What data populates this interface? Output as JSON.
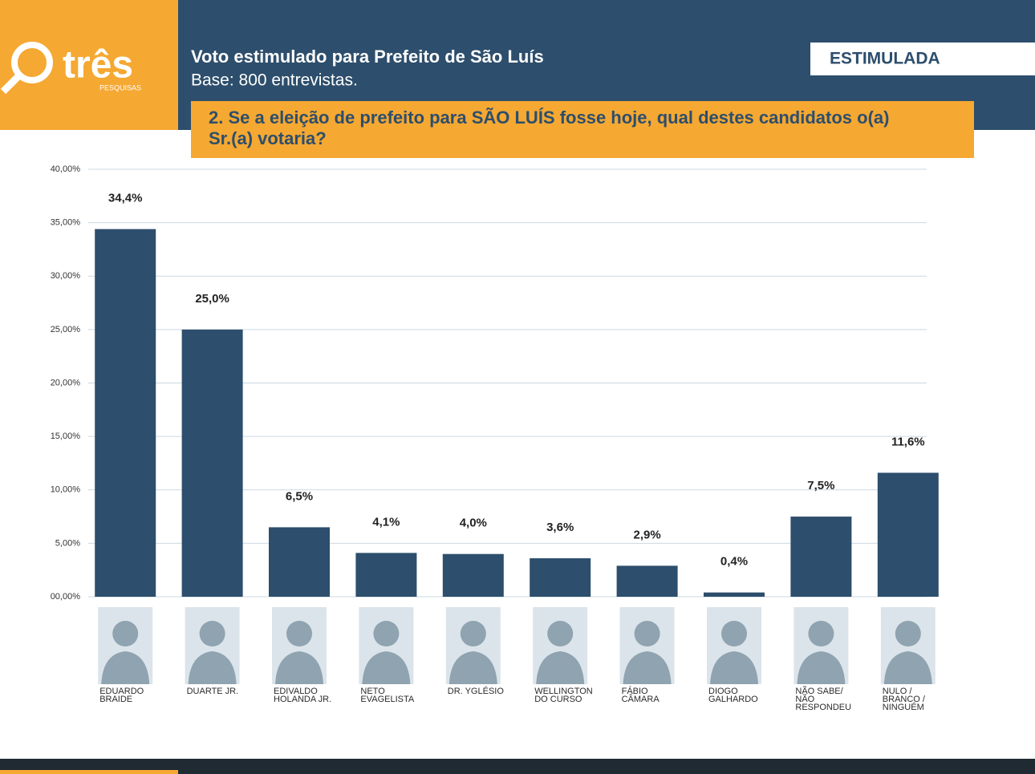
{
  "brand": {
    "name": "três",
    "tagline": "PESQUISAS"
  },
  "header": {
    "title": "Voto estimulado para Prefeito de São Luís",
    "subtitle": "Base: 800 entrevistas.",
    "badge": "ESTIMULADA",
    "question": "2. Se a eleição de prefeito para SÃO LUÍS fosse hoje, qual destes candidatos o(a) Sr.(a) votaria?"
  },
  "chart_data": {
    "type": "bar",
    "categories": [
      "EDUARDO BRAIDE",
      "DUARTE JR.",
      "EDIVALDO HOLANDA JR.",
      "NETO EVAGELISTA",
      "DR. YGLÉSIO",
      "WELLINGTON DO CURSO",
      "FÁBIO CÂMARA",
      "DIOGO GALHARDO",
      "NÃO SABE/ NÃO RESPONDEU",
      "NULO / BRANCO / NINGUÉM"
    ],
    "values": [
      34.4,
      25.0,
      6.5,
      4.1,
      4.0,
      3.6,
      2.9,
      0.4,
      7.5,
      11.6
    ],
    "value_labels": [
      "34,4%",
      "25,0%",
      "6,5%",
      "4,1%",
      "4,0%",
      "3,6%",
      "2,9%",
      "0,4%",
      "7,5%",
      "11,6%"
    ],
    "color": "#2d4e6c",
    "ylim": [
      0,
      40
    ],
    "yticks": [
      {
        "value": 0,
        "label": "00,00%"
      },
      {
        "value": 5,
        "label": "5,00%"
      },
      {
        "value": 10,
        "label": "10,00%"
      },
      {
        "value": 15,
        "label": "15,00%"
      },
      {
        "value": 20,
        "label": "20,00%"
      },
      {
        "value": 25,
        "label": "25,00%"
      },
      {
        "value": 30,
        "label": "30,00%"
      },
      {
        "value": 35,
        "label": "35,00%"
      },
      {
        "value": 40,
        "label": "40,00%"
      }
    ],
    "grid": true
  }
}
